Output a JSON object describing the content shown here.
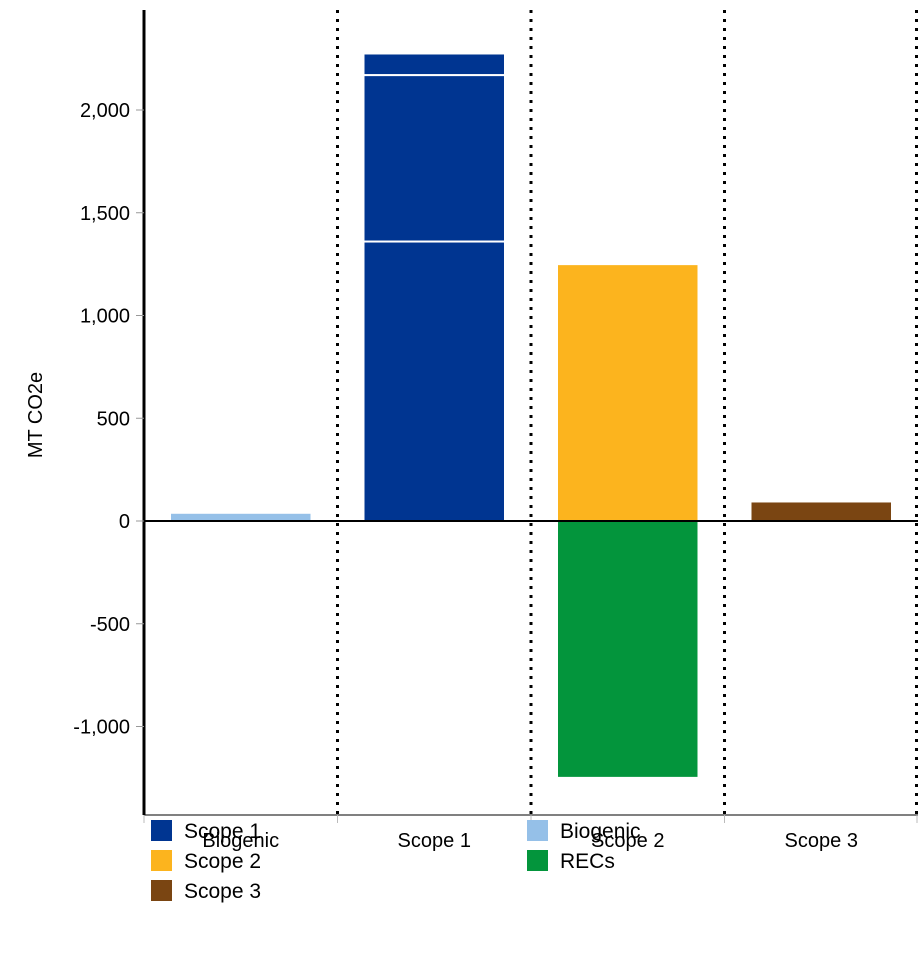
{
  "chart_data": {
    "type": "bar",
    "stacked": true,
    "title": "",
    "xlabel": "",
    "ylabel": "MT CO2e",
    "ylim": [
      -1400,
      2450
    ],
    "yticks": [
      -1000,
      -500,
      0,
      500,
      1000,
      1500,
      2000
    ],
    "ytick_labels": [
      "-1,000",
      "-500",
      "0",
      "500",
      "1,000",
      "1,500",
      "2,000"
    ],
    "categories": [
      "Biogenic",
      "Scope 1",
      "Scope 2",
      "Scope 3"
    ],
    "stacks": [
      {
        "category": "Biogenic",
        "segments": [
          {
            "series": "Biogenic",
            "value": 40
          }
        ]
      },
      {
        "category": "Scope 1",
        "segments": [
          {
            "series": "Scope 1",
            "value": 1360
          },
          {
            "series": "Scope 1",
            "value": 810
          },
          {
            "series": "Scope 1",
            "value": 105
          }
        ]
      },
      {
        "category": "Scope 2",
        "segments": [
          {
            "series": "Scope 2",
            "value": 1250
          },
          {
            "series": "RECs",
            "value": -1250
          }
        ]
      },
      {
        "category": "Scope 3",
        "segments": [
          {
            "series": "Scope 3",
            "value": 95
          }
        ]
      }
    ],
    "legend": {
      "position": "bottom",
      "items": [
        {
          "name": "Scope 1",
          "color": "#003591"
        },
        {
          "name": "Scope 2",
          "color": "#FCB41E"
        },
        {
          "name": "Scope 3",
          "color": "#7A4512"
        },
        {
          "name": "Biogenic",
          "color": "#95C0E8"
        },
        {
          "name": "RECs",
          "color": "#03953C"
        }
      ]
    },
    "colors": {
      "Scope 1": "#003591",
      "Scope 2": "#FCB41E",
      "Scope 3": "#7A4512",
      "Biogenic": "#95C0E8",
      "RECs": "#03953C"
    },
    "grid": false
  }
}
